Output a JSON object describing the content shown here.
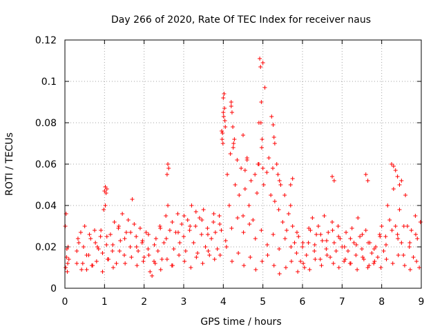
{
  "chart_data": {
    "type": "scatter",
    "title": "Day 266 of 2020, Rate Of TEC Index for receiver naus",
    "xlabel": "GPS time / hours",
    "ylabel": "ROTI / TECUs",
    "xlim": [
      0,
      9
    ],
    "ylim": [
      0,
      0.12
    ],
    "xticks": [
      0,
      1,
      2,
      3,
      4,
      5,
      6,
      7,
      8,
      9
    ],
    "xtick_labels": [
      "0",
      "1",
      "2",
      "3",
      "4",
      "5",
      "6",
      "7",
      "8",
      "9"
    ],
    "yticks": [
      0,
      0.02,
      0.04,
      0.06,
      0.08,
      0.1,
      0.12
    ],
    "ytick_labels": [
      "0",
      "0.02",
      "0.04",
      "0.06",
      "0.08",
      "0.1",
      "0.12"
    ],
    "grid": true,
    "marker": "plus",
    "series": [
      {
        "color": "#ff0000",
        "x": [
          0.01,
          0.03,
          0.05,
          0.07,
          0.02,
          0.04,
          0.06,
          0.08,
          0.1,
          0.3,
          0.35,
          0.4,
          0.45,
          0.5,
          0.55,
          0.6,
          0.65,
          0.7,
          0.75,
          0.8,
          0.85,
          0.9,
          0.95,
          0.98,
          1.0,
          1.02,
          1.05,
          1.1,
          1.15,
          1.2,
          1.25,
          1.3,
          1.35,
          1.4,
          1.45,
          1.5,
          1.55,
          1.6,
          1.65,
          1.7,
          1.75,
          1.8,
          1.85,
          1.9,
          1.95,
          2.0,
          2.05,
          2.1,
          2.15,
          2.2,
          2.25,
          2.3,
          2.35,
          2.4,
          2.45,
          2.5,
          2.55,
          2.6,
          2.65,
          2.7,
          2.75,
          2.8,
          2.85,
          2.9,
          2.95,
          3.0,
          3.05,
          3.1,
          3.15,
          3.2,
          3.25,
          3.3,
          3.35,
          3.4,
          3.45,
          3.5,
          3.55,
          3.6,
          3.65,
          3.7,
          3.75,
          3.8,
          3.85,
          3.9,
          3.95,
          3.98,
          4.0,
          4.02,
          4.05,
          4.1,
          4.15,
          4.2,
          4.25,
          4.3,
          4.35,
          4.4,
          4.45,
          4.5,
          4.55,
          4.6,
          4.65,
          4.7,
          4.75,
          4.8,
          4.85,
          4.9,
          4.95,
          4.97,
          5.0,
          5.05,
          5.1,
          5.15,
          5.2,
          5.25,
          5.3,
          5.35,
          5.4,
          5.45,
          5.5,
          5.55,
          5.6,
          5.65,
          5.7,
          5.75,
          5.8,
          5.85,
          5.9,
          5.95,
          6.0,
          6.05,
          6.1,
          6.15,
          6.2,
          6.25,
          6.3,
          6.35,
          6.4,
          6.45,
          6.5,
          6.55,
          6.6,
          6.65,
          6.7,
          6.75,
          6.8,
          6.85,
          6.9,
          6.95,
          7.0,
          7.05,
          7.1,
          7.15,
          7.2,
          7.25,
          7.3,
          7.35,
          7.4,
          7.45,
          7.5,
          7.55,
          7.6,
          7.65,
          7.7,
          7.75,
          7.8,
          7.85,
          7.9,
          7.95,
          8.0,
          8.05,
          8.1,
          8.15,
          8.2,
          8.25,
          8.3,
          8.35,
          8.4,
          8.45,
          8.5,
          8.55,
          8.6,
          8.65,
          8.7,
          8.75,
          8.8,
          8.85,
          8.9,
          8.95,
          8.98,
          0.3,
          0.42,
          0.55,
          0.68,
          0.82,
          0.95,
          1.08,
          1.22,
          1.38,
          1.52,
          1.68,
          1.82,
          1.98,
          2.12,
          2.28,
          2.42,
          2.58,
          2.72,
          2.88,
          3.02,
          3.18,
          3.32,
          3.48,
          3.62,
          3.78,
          3.92,
          4.08,
          4.22,
          4.38,
          4.52,
          4.68,
          4.82,
          4.98,
          5.12,
          5.28,
          5.42,
          5.58,
          5.72,
          5.88,
          6.02,
          6.18,
          6.32,
          6.48,
          6.62,
          6.78,
          6.92,
          7.08,
          7.22,
          7.38,
          7.52,
          7.68,
          7.82,
          7.98,
          8.12,
          8.28,
          8.42,
          8.58,
          8.72,
          8.88,
          0.33,
          0.47,
          0.62,
          0.77,
          0.91,
          1.06,
          1.21,
          1.36,
          1.51,
          1.66,
          1.81,
          1.96,
          2.11,
          2.26,
          2.41,
          2.56,
          2.71,
          2.86,
          3.01,
          3.16,
          3.31,
          3.46,
          3.61,
          3.76,
          3.91,
          4.06,
          4.21,
          4.36,
          4.51,
          4.66,
          4.81,
          4.96,
          5.11,
          5.26,
          5.41,
          5.56,
          5.71,
          5.86,
          6.01,
          6.16,
          6.31,
          6.46,
          6.61,
          6.76,
          6.91,
          7.06,
          7.21,
          7.36,
          7.51,
          7.66,
          7.81,
          7.96,
          8.11,
          8.26,
          8.41,
          8.56,
          8.71,
          8.86,
          3.97,
          3.99,
          4.01,
          4.03,
          3.96,
          4.0,
          4.04,
          4.18,
          4.2,
          4.22,
          4.24,
          4.26,
          4.28,
          4.5,
          4.55,
          4.6,
          4.88,
          4.9,
          4.92,
          4.94,
          4.96,
          4.98,
          5.0,
          5.02,
          5.22,
          5.26,
          5.28,
          5.3,
          5.38,
          5.42,
          5.7,
          5.75,
          6.75,
          6.8,
          7.6,
          7.65,
          8.3,
          8.35,
          8.4,
          8.45,
          8.5,
          2.58,
          2.6,
          2.62,
          1.02,
          1.04,
          1.06
        ],
        "y": [
          0.03,
          0.036,
          0.019,
          0.012,
          0.01,
          0.015,
          0.008,
          0.02,
          0.014,
          0.018,
          0.022,
          0.027,
          0.012,
          0.03,
          0.009,
          0.016,
          0.024,
          0.011,
          0.028,
          0.013,
          0.019,
          0.025,
          0.017,
          0.038,
          0.047,
          0.04,
          0.021,
          0.014,
          0.026,
          0.018,
          0.032,
          0.012,
          0.029,
          0.023,
          0.036,
          0.016,
          0.027,
          0.033,
          0.02,
          0.043,
          0.031,
          0.025,
          0.018,
          0.029,
          0.022,
          0.015,
          0.027,
          0.019,
          0.008,
          0.006,
          0.013,
          0.024,
          0.018,
          0.03,
          0.014,
          0.022,
          0.035,
          0.04,
          0.028,
          0.011,
          0.019,
          0.027,
          0.036,
          0.022,
          0.031,
          0.025,
          0.018,
          0.033,
          0.028,
          0.04,
          0.022,
          0.03,
          0.017,
          0.034,
          0.026,
          0.038,
          0.02,
          0.029,
          0.016,
          0.024,
          0.032,
          0.027,
          0.019,
          0.035,
          0.028,
          0.075,
          0.085,
          0.094,
          0.078,
          0.055,
          0.04,
          0.088,
          0.068,
          0.05,
          0.062,
          0.045,
          0.058,
          0.035,
          0.048,
          0.063,
          0.04,
          0.052,
          0.033,
          0.055,
          0.046,
          0.06,
          0.08,
          0.068,
          0.109,
          0.097,
          0.056,
          0.063,
          0.045,
          0.058,
          0.042,
          0.06,
          0.038,
          0.05,
          0.032,
          0.045,
          0.028,
          0.036,
          0.04,
          0.03,
          0.022,
          0.017,
          0.025,
          0.013,
          0.02,
          0.01,
          0.016,
          0.022,
          0.028,
          0.034,
          0.018,
          0.026,
          0.03,
          0.014,
          0.023,
          0.035,
          0.019,
          0.027,
          0.015,
          0.032,
          0.022,
          0.018,
          0.03,
          0.024,
          0.02,
          0.013,
          0.027,
          0.018,
          0.012,
          0.029,
          0.022,
          0.016,
          0.034,
          0.025,
          0.019,
          0.014,
          0.028,
          0.01,
          0.022,
          0.017,
          0.012,
          0.02,
          0.015,
          0.026,
          0.03,
          0.018,
          0.025,
          0.04,
          0.033,
          0.06,
          0.048,
          0.03,
          0.026,
          0.038,
          0.022,
          0.016,
          0.045,
          0.03,
          0.02,
          0.028,
          0.015,
          0.035,
          0.024,
          0.01,
          0.032,
          0.012,
          0.009,
          0.016,
          0.011,
          0.02,
          0.008,
          0.014,
          0.01,
          0.018,
          0.012,
          0.015,
          0.011,
          0.013,
          0.016,
          0.012,
          0.009,
          0.014,
          0.011,
          0.016,
          0.013,
          0.01,
          0.015,
          0.012,
          0.018,
          0.014,
          0.016,
          0.02,
          0.013,
          0.017,
          0.011,
          0.015,
          0.009,
          0.013,
          0.016,
          0.011,
          0.007,
          0.01,
          0.013,
          0.008,
          0.012,
          0.009,
          0.014,
          0.011,
          0.016,
          0.012,
          0.01,
          0.014,
          0.012,
          0.009,
          0.015,
          0.011,
          0.013,
          0.01,
          0.014,
          0.012,
          0.016,
          0.011,
          0.009,
          0.013,
          0.024,
          0.02,
          0.026,
          0.022,
          0.028,
          0.025,
          0.021,
          0.03,
          0.024,
          0.027,
          0.02,
          0.023,
          0.026,
          0.021,
          0.029,
          0.024,
          0.032,
          0.027,
          0.035,
          0.03,
          0.037,
          0.033,
          0.026,
          0.036,
          0.031,
          0.023,
          0.029,
          0.034,
          0.027,
          0.031,
          0.024,
          0.028,
          0.021,
          0.026,
          0.019,
          0.024,
          0.02,
          0.027,
          0.022,
          0.029,
          0.021,
          0.026,
          0.023,
          0.028,
          0.025,
          0.02,
          0.024,
          0.021,
          0.026,
          0.022,
          0.019,
          0.025,
          0.021,
          0.028,
          0.024,
          0.03,
          0.022,
          0.026,
          0.072,
          0.07,
          0.083,
          0.087,
          0.076,
          0.092,
          0.081,
          0.065,
          0.09,
          0.085,
          0.078,
          0.07,
          0.072,
          0.074,
          0.057,
          0.062,
          0.06,
          0.08,
          0.111,
          0.107,
          0.09,
          0.072,
          0.058,
          0.05,
          0.083,
          0.079,
          0.073,
          0.07,
          0.055,
          0.052,
          0.05,
          0.053,
          0.054,
          0.052,
          0.055,
          0.052,
          0.059,
          0.057,
          0.054,
          0.05,
          0.052,
          0.055,
          0.06,
          0.058,
          0.049,
          0.046,
          0.048
        ]
      }
    ]
  }
}
